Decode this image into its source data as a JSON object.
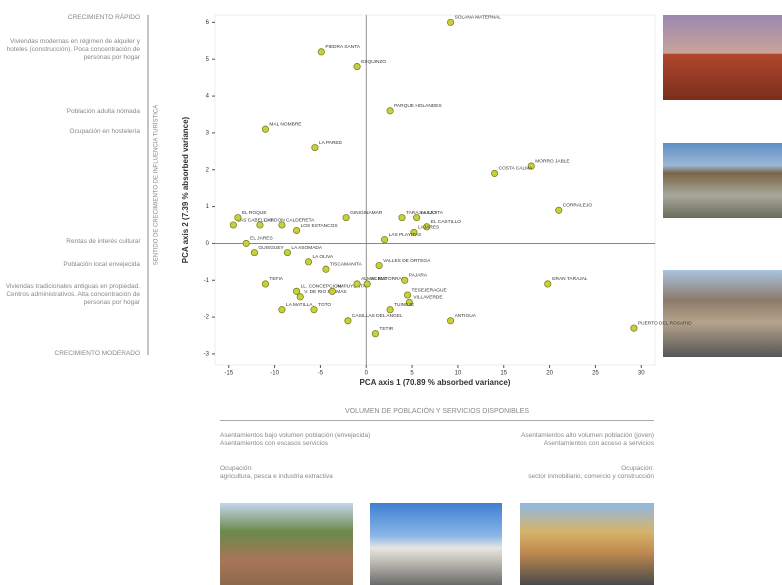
{
  "chart_data": {
    "type": "scatter",
    "x_label": "PCA axis 1 (70.89 % absorbed variance)",
    "y_label": "PCA axis 2 (7.39 % absorbed variance)",
    "labels": [
      "SOLANA MATERNAL",
      "PIEDRA SANTA",
      "ESQUINZO",
      "PARQUE HOLANDES",
      "MAL NOMBRE",
      "LA PARED",
      "MORRO JABLE",
      "COSTA CALMA",
      "CORRALEJO",
      "LAS CABELLAS",
      "EL ROQUE",
      "CARDON",
      "CALDERETA",
      "LOS ESTANCOS",
      "EL JARES",
      "GINIGINAMAR",
      "TARAJALEJO",
      "LA LAJITA",
      "EL CASTILLO",
      "LAJARES",
      "LAS PLAYITAS",
      "VALLES DE ORTEGA",
      "LA ASOMADA",
      "TISCAMANITA",
      "LA OLIVA",
      "EL MATORRAL",
      "PAJARA",
      "TEFIA",
      "TESEJERAGUE",
      "VILLAVERDE",
      "LL. CONCEPCION",
      "V. DE RIO PALMAS",
      "LA MATILLA",
      "TOTO",
      "TUINEJE",
      "CASILLAS DEL ANGEL",
      "TETIR",
      "ANTIGUA",
      "GRAN TARAJAL",
      "PUERTO DEL ROSARIO",
      "GUISGUEY",
      "AMPUYENTA",
      "ALMACIGO"
    ],
    "x": [
      9.2,
      -4.9,
      -1.0,
      2.6,
      -11.0,
      -5.6,
      18.0,
      14.0,
      21.0,
      -14.5,
      -14.0,
      -11.6,
      -9.2,
      -7.6,
      -13.1,
      -2.2,
      3.9,
      5.5,
      6.6,
      5.2,
      2.0,
      1.4,
      -8.6,
      -4.4,
      -6.3,
      0.1,
      4.2,
      -11.0,
      4.5,
      4.7,
      -7.6,
      -7.2,
      -9.2,
      -5.7,
      2.6,
      -2.0,
      1.0,
      9.2,
      19.8,
      29.2,
      -12.2,
      -3.7,
      -1.0
    ],
    "values": [
      6.0,
      5.2,
      4.8,
      3.6,
      3.1,
      2.6,
      2.1,
      1.9,
      0.9,
      0.5,
      0.7,
      0.5,
      0.5,
      0.35,
      0.0,
      0.7,
      0.7,
      0.7,
      0.45,
      0.3,
      0.1,
      -0.6,
      -0.25,
      -0.7,
      -0.5,
      -1.1,
      -1.0,
      -1.1,
      -1.4,
      -1.6,
      -1.3,
      -1.45,
      -1.8,
      -1.8,
      -1.8,
      -2.1,
      -2.45,
      -2.1,
      -1.1,
      -2.3,
      -0.25,
      -1.3,
      -1.1
    ],
    "color": "#c9cf3a",
    "xlim": [
      -16.5,
      31.5
    ],
    "xticks": [
      -15,
      -10,
      -5,
      0,
      5,
      10,
      15,
      20,
      25,
      30
    ],
    "ylim": [
      -3.3,
      6.2
    ],
    "yticks": [
      -3,
      -2,
      -1,
      0,
      1,
      2,
      3,
      4,
      5,
      6
    ]
  },
  "left_panel": {
    "top": "CRECIMIENTO RÁPIDO",
    "items": [
      "Viviendas modernas en régimen de alquiler y hoteles (construcción). Poca concentración de personas por hogar",
      "Población adulta nómada",
      "Ocupación en hostelería",
      "Rentas de interés cultural",
      "Población local envejecida",
      "Viviendas tradicionales antiguas en propiedad. Centros administrativos. Alta concentración de personas por hogar"
    ],
    "bottom": "CRECIMIENTO MODERADO",
    "axis": "SENTIDO DE CRECIMIENTO DE INFLUENCIA TURÍSTICA"
  },
  "bottom_panel": {
    "title": "VOLUMEN DE POBLACIÓN Y SERVICIOS DISPONIBLES",
    "left": [
      "Asentamientos bajo volumen población (envejecida)",
      "Asentamientos con escasos servicios"
    ],
    "right": [
      "Asentamientos alto volumen población (joven)",
      "Asentamientos con acceso a servicios"
    ],
    "left_occupation": [
      "Ocupación:",
      "agricultura, pesca e industria extractiva"
    ],
    "right_occupation": [
      "Ocupación:",
      "sector inmobiliario, comercio y construcción"
    ]
  }
}
